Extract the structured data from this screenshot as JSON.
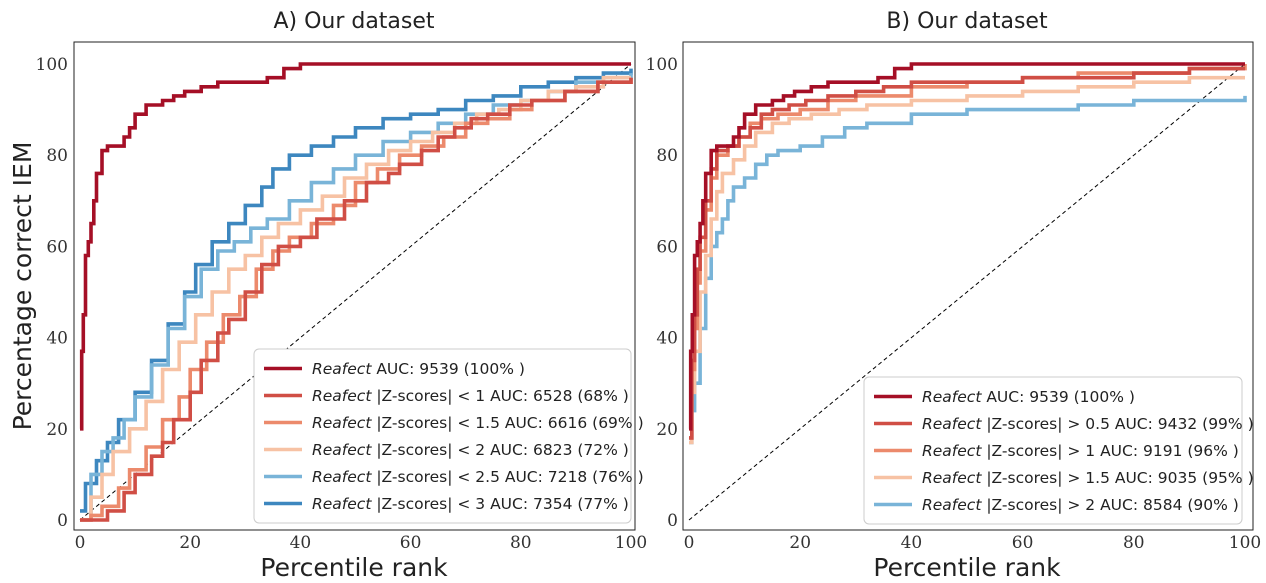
{
  "figure": {
    "ylabel": "Percentage correct IEM"
  },
  "chart_data": [
    {
      "type": "line",
      "title": "A) Our dataset",
      "xlabel": "Percentile rank",
      "ylabel": "Percentage correct IEM",
      "xlim": [
        0,
        100
      ],
      "ylim": [
        0,
        100
      ],
      "xticks": [
        "0",
        "20",
        "40",
        "60",
        "80",
        "100"
      ],
      "yticks": [
        "0",
        "20",
        "40",
        "60",
        "80",
        "100"
      ],
      "grid": false,
      "legend_position": "bottom-right",
      "reference_line": {
        "x": [
          0,
          100
        ],
        "y": [
          0,
          100
        ],
        "style": "dashed",
        "color": "#000000"
      },
      "series": [
        {
          "name_italic": "Reafect",
          "name_rest": " AUC: 9539 (100% )",
          "color": "#a50f26",
          "x": [
            0,
            0.3,
            0.6,
            1,
            1.5,
            2,
            2.5,
            3,
            4,
            5,
            7,
            8,
            9,
            10,
            12,
            15,
            17,
            19,
            22,
            25,
            34,
            37,
            40,
            60,
            80,
            100
          ],
          "y": [
            20,
            37,
            45,
            58,
            61,
            65,
            70,
            76,
            81,
            82,
            82,
            84,
            86,
            89,
            91,
            92,
            93,
            94,
            95,
            96,
            97,
            99,
            100,
            100,
            100,
            100
          ]
        },
        {
          "name_italic": "Reafect",
          "name_rest": " |Z-scores| < 1 AUC: 6528 (68% )",
          "color": "#d04e45",
          "x": [
            0,
            3,
            5,
            8,
            10,
            13,
            15,
            17,
            20,
            22,
            25,
            27,
            30,
            33,
            36,
            40,
            43,
            48,
            52,
            56,
            58,
            62,
            65,
            68,
            71,
            74,
            78,
            82,
            88,
            94,
            100
          ],
          "y": [
            0,
            0,
            2,
            6,
            10,
            14,
            17,
            22,
            28,
            35,
            41,
            44,
            50,
            56,
            60,
            62,
            66,
            70,
            74,
            76,
            78,
            81,
            84,
            86,
            88,
            89,
            91,
            92,
            94,
            96,
            97
          ]
        },
        {
          "name_italic": "Reafect",
          "name_rest": " |Z-scores| < 1.5 AUC: 6616 (69% )",
          "color": "#ec8a6c",
          "x": [
            0,
            2,
            4,
            7,
            9,
            12,
            15,
            18,
            20,
            23,
            26,
            29,
            32,
            35,
            38,
            42,
            46,
            50,
            54,
            58,
            62,
            66,
            70,
            74,
            78,
            82,
            88,
            94,
            100
          ],
          "y": [
            0,
            1,
            3,
            7,
            11,
            16,
            22,
            27,
            33,
            39,
            45,
            49,
            55,
            59,
            62,
            65,
            69,
            74,
            77,
            80,
            82,
            84,
            87,
            88,
            90,
            92,
            94,
            96,
            97
          ]
        },
        {
          "name_italic": "Reafect",
          "name_rest": " |Z-scores| < 2 AUC: 6823 (72% )",
          "color": "#f7c2a4",
          "x": [
            0,
            2,
            4,
            6,
            9,
            12,
            15,
            18,
            21,
            24,
            27,
            30,
            33,
            36,
            40,
            44,
            48,
            52,
            56,
            60,
            64,
            68,
            72,
            76,
            80,
            85,
            90,
            95,
            100
          ],
          "y": [
            0,
            5,
            10,
            15,
            20,
            26,
            33,
            39,
            45,
            50,
            55,
            58,
            62,
            65,
            68,
            71,
            75,
            78,
            81,
            83,
            85,
            87,
            89,
            90,
            92,
            94,
            95,
            97,
            97
          ]
        },
        {
          "name_italic": "Reafect",
          "name_rest": " |Z-scores| < 2.5 AUC: 7218 (76% )",
          "color": "#79b4d8",
          "x": [
            0,
            2,
            4,
            6,
            8,
            10,
            13,
            16,
            19,
            22,
            25,
            28,
            31,
            34,
            38,
            42,
            46,
            50,
            55,
            60,
            65,
            70,
            75,
            80,
            85,
            90,
            95,
            100
          ],
          "y": [
            0,
            10,
            15,
            18,
            22,
            27,
            34,
            42,
            49,
            55,
            59,
            61,
            64,
            66,
            70,
            74,
            77,
            80,
            83,
            85,
            87,
            89,
            91,
            92,
            94,
            96,
            97,
            98
          ]
        },
        {
          "name_italic": "Reafect",
          "name_rest": " |Z-scores| < 3 AUC: 7354 (77% )",
          "color": "#3d87bf",
          "x": [
            0,
            1,
            3,
            5,
            7,
            10,
            13,
            16,
            19,
            21,
            24,
            27,
            30,
            33,
            35,
            38,
            42,
            46,
            50,
            55,
            60,
            65,
            70,
            75,
            80,
            85,
            90,
            95,
            100
          ],
          "y": [
            2,
            8,
            13,
            17,
            22,
            28,
            35,
            43,
            50,
            56,
            61,
            65,
            69,
            73,
            77,
            80,
            82,
            84,
            86,
            88,
            89,
            90,
            92,
            93,
            95,
            96,
            97,
            98,
            99
          ]
        }
      ]
    },
    {
      "type": "line",
      "title": "B) Our dataset",
      "xlabel": "Percentile rank",
      "ylabel": "",
      "xlim": [
        0,
        100
      ],
      "ylim": [
        0,
        100
      ],
      "xticks": [
        "0",
        "20",
        "40",
        "60",
        "80",
        "100"
      ],
      "yticks": [
        "0",
        "20",
        "40",
        "60",
        "80",
        "100"
      ],
      "grid": false,
      "legend_position": "bottom-right",
      "reference_line": {
        "x": [
          0,
          100
        ],
        "y": [
          0,
          100
        ],
        "style": "dashed",
        "color": "#000000"
      },
      "series": [
        {
          "name_italic": "Reafect",
          "name_rest": " AUC: 9539 (100% )",
          "color": "#a50f26",
          "x": [
            0,
            0.3,
            0.6,
            1,
            1.5,
            2,
            2.5,
            3,
            4,
            5,
            7,
            8,
            9,
            10,
            12,
            15,
            17,
            19,
            22,
            25,
            34,
            37,
            40,
            60,
            80,
            100
          ],
          "y": [
            20,
            37,
            45,
            58,
            61,
            65,
            70,
            76,
            81,
            82,
            82,
            84,
            86,
            89,
            91,
            92,
            93,
            94,
            95,
            96,
            97,
            99,
            100,
            100,
            100,
            100
          ]
        },
        {
          "name_italic": "Reafect",
          "name_rest": " |Z-scores| > 0.5 AUC: 9432 (99% )",
          "color": "#d04e45",
          "x": [
            0,
            0.5,
            1,
            1.5,
            2,
            3,
            4,
            5,
            7,
            9,
            11,
            13,
            15,
            18,
            21,
            25,
            30,
            35,
            40,
            60,
            80,
            90,
            100
          ],
          "y": [
            18,
            35,
            45,
            55,
            62,
            70,
            77,
            81,
            82,
            84,
            86,
            89,
            90,
            91,
            92,
            93,
            94,
            95,
            96,
            97,
            98,
            99,
            99
          ]
        },
        {
          "name_italic": "Reafect",
          "name_rest": " |Z-scores| > 1 AUC: 9191 (96% )",
          "color": "#ec8a6c",
          "x": [
            0,
            0.5,
            1,
            1.5,
            2,
            3,
            4,
            5,
            7,
            9,
            11,
            13,
            16,
            20,
            25,
            30,
            40,
            50,
            60,
            70,
            80,
            90,
            100
          ],
          "y": [
            18,
            33,
            42,
            52,
            59,
            68,
            75,
            80,
            82,
            84,
            87,
            88,
            89,
            90,
            92,
            93,
            95,
            96,
            97,
            98,
            98,
            99,
            100
          ]
        },
        {
          "name_italic": "Reafect",
          "name_rest": " |Z-scores| > 1.5 AUC: 9035 (95% )",
          "color": "#f7c2a4",
          "x": [
            0,
            0.5,
            1,
            2,
            3,
            4,
            5,
            6,
            8,
            10,
            12,
            15,
            18,
            22,
            27,
            32,
            40,
            50,
            60,
            70,
            80,
            90,
            100
          ],
          "y": [
            17,
            28,
            37,
            50,
            58,
            66,
            72,
            76,
            79,
            82,
            85,
            87,
            88,
            89,
            90,
            91,
            92,
            93,
            94,
            95,
            96,
            97,
            97
          ]
        },
        {
          "name_italic": "Reafect",
          "name_rest": " |Z-scores| > 2 AUC: 8584 (90% )",
          "color": "#79b4d8",
          "x": [
            0,
            0.5,
            1,
            2,
            3,
            4,
            5,
            6,
            7,
            8,
            10,
            12,
            14,
            16,
            20,
            24,
            28,
            32,
            40,
            50,
            60,
            70,
            80,
            100
          ],
          "y": [
            17,
            24,
            30,
            42,
            53,
            60,
            63,
            66,
            70,
            73,
            75,
            78,
            80,
            81,
            82,
            84,
            86,
            87,
            89,
            90,
            90,
            91,
            92,
            93
          ]
        }
      ]
    }
  ]
}
